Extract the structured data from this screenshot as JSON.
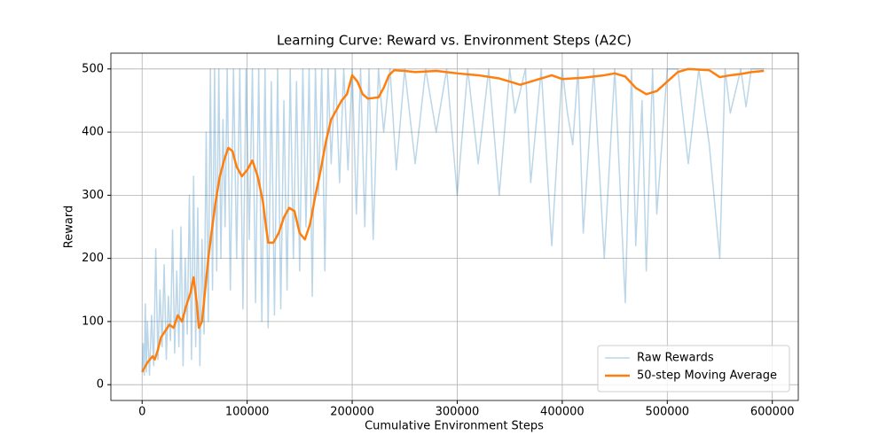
{
  "chart_data": {
    "type": "line",
    "title": "Learning Curve: Reward vs. Environment Steps (A2C)",
    "x_label": "Cumulative Environment Steps",
    "y_label": "Reward",
    "xlim": [
      -29750,
      624750
    ],
    "ylim": [
      -25,
      525
    ],
    "xticks": [
      0,
      100000,
      200000,
      300000,
      400000,
      500000,
      600000
    ],
    "yticks": [
      0,
      100,
      200,
      300,
      400,
      500
    ],
    "grid": true,
    "legend": "lower right",
    "series": [
      {
        "name": "Raw Rewards",
        "color": "#1f77b4",
        "alpha": 0.3,
        "width": 1.5,
        "x": [
          0,
          1000,
          2000,
          3000,
          4000,
          5000,
          7000,
          9000,
          11000,
          13000,
          15000,
          17000,
          19000,
          21000,
          23000,
          25000,
          27000,
          29000,
          31000,
          33000,
          35000,
          37000,
          39000,
          41000,
          43000,
          45000,
          47000,
          49000,
          51000,
          53000,
          55000,
          57000,
          59000,
          61000,
          63000,
          65000,
          67000,
          69000,
          71000,
          73000,
          75000,
          77000,
          79000,
          81000,
          84000,
          87000,
          90000,
          93000,
          96000,
          99000,
          102000,
          105000,
          108000,
          111000,
          114000,
          117000,
          120000,
          123000,
          126000,
          129000,
          132000,
          135000,
          138000,
          141000,
          144000,
          147000,
          150000,
          153000,
          156000,
          159000,
          162000,
          165000,
          168000,
          171000,
          174000,
          177000,
          180000,
          184000,
          188000,
          192000,
          196000,
          200000,
          204000,
          208000,
          212000,
          216000,
          220000,
          225000,
          230000,
          236000,
          242000,
          250000,
          260000,
          270000,
          280000,
          290000,
          300000,
          310000,
          320000,
          330000,
          340000,
          350000,
          355000,
          365000,
          370000,
          380000,
          390000,
          400000,
          405000,
          410000,
          415000,
          420000,
          430000,
          440000,
          450000,
          460000,
          466000,
          470000,
          476000,
          480000,
          486000,
          490000,
          500000,
          510000,
          520000,
          530000,
          540000,
          550000,
          555000,
          560000,
          570000,
          575000,
          580000,
          592000
        ],
        "values": [
          20,
          65,
          15,
          128,
          20,
          100,
          15,
          110,
          30,
          215,
          40,
          150,
          60,
          190,
          40,
          140,
          70,
          245,
          50,
          180,
          60,
          250,
          30,
          200,
          80,
          300,
          40,
          330,
          60,
          280,
          30,
          230,
          80,
          400,
          100,
          500,
          150,
          500,
          180,
          500,
          200,
          420,
          250,
          500,
          150,
          500,
          200,
          500,
          120,
          500,
          230,
          500,
          130,
          500,
          100,
          500,
          90,
          480,
          110,
          500,
          120,
          450,
          150,
          500,
          200,
          480,
          180,
          500,
          250,
          500,
          140,
          500,
          300,
          500,
          180,
          500,
          350,
          500,
          320,
          500,
          340,
          500,
          270,
          500,
          250,
          500,
          230,
          500,
          400,
          500,
          340,
          500,
          350,
          500,
          400,
          500,
          300,
          500,
          350,
          500,
          300,
          500,
          430,
          500,
          320,
          500,
          220,
          500,
          430,
          380,
          500,
          240,
          500,
          200,
          500,
          130,
          500,
          220,
          450,
          180,
          500,
          270,
          500,
          500,
          350,
          500,
          380,
          200,
          500,
          430,
          500,
          440,
          500,
          500
        ]
      },
      {
        "name": "50-step Moving Average",
        "color": "#ff7f0e",
        "alpha": 1,
        "width": 2.5,
        "x": [
          0,
          5000,
          10000,
          12000,
          15000,
          18000,
          22000,
          26000,
          30000,
          34000,
          38000,
          42000,
          46000,
          49000,
          52000,
          54000,
          57000,
          60000,
          63000,
          66000,
          70000,
          74000,
          78000,
          82000,
          86000,
          90000,
          95000,
          100000,
          105000,
          110000,
          115000,
          118000,
          120000,
          125000,
          130000,
          135000,
          140000,
          145000,
          150000,
          155000,
          160000,
          165000,
          170000,
          175000,
          180000,
          185000,
          190000,
          195000,
          200000,
          205000,
          210000,
          215000,
          225000,
          230000,
          235000,
          240000,
          250000,
          260000,
          280000,
          300000,
          320000,
          340000,
          350000,
          360000,
          370000,
          380000,
          390000,
          400000,
          420000,
          440000,
          450000,
          460000,
          470000,
          480000,
          490000,
          500000,
          510000,
          520000,
          540000,
          550000,
          560000,
          570000,
          580000,
          592000
        ],
        "values": [
          20,
          35,
          45,
          40,
          55,
          75,
          85,
          95,
          90,
          110,
          100,
          125,
          145,
          170,
          130,
          90,
          100,
          150,
          200,
          240,
          290,
          330,
          355,
          375,
          370,
          345,
          330,
          340,
          355,
          330,
          290,
          250,
          225,
          225,
          240,
          265,
          280,
          275,
          240,
          230,
          255,
          300,
          340,
          385,
          420,
          435,
          450,
          460,
          490,
          480,
          460,
          453,
          455,
          470,
          490,
          498,
          497,
          495,
          497,
          493,
          490,
          485,
          480,
          475,
          480,
          485,
          490,
          484,
          486,
          490,
          493,
          488,
          470,
          460,
          465,
          480,
          495,
          500,
          498,
          487,
          490,
          492,
          495,
          497
        ]
      }
    ]
  }
}
